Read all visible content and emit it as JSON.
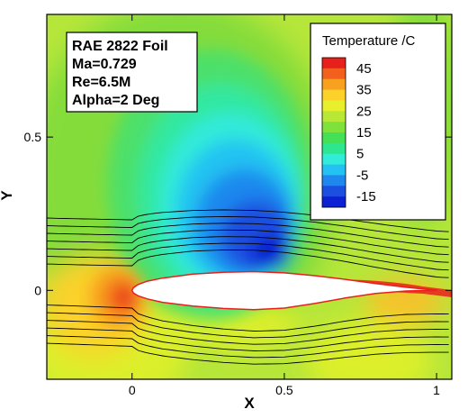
{
  "chart_data": {
    "type": "heatmap",
    "xlabel": "X",
    "ylabel": "Y",
    "xlim": [
      -0.28,
      1.05
    ],
    "ylim": [
      -0.29,
      0.9
    ],
    "x_ticks": [
      {
        "value": 0,
        "label": "0"
      },
      {
        "value": 0.5,
        "label": "0.5"
      },
      {
        "value": 1,
        "label": "1"
      }
    ],
    "y_ticks": [
      {
        "value": 0,
        "label": "0"
      },
      {
        "value": 0.5,
        "label": "0.5"
      }
    ],
    "info_box": {
      "lines": [
        "RAE 2822 Foil",
        "Ma=0.729",
        "Re=6.5M",
        "Alpha=2 Deg"
      ]
    },
    "legend": {
      "title": "Temperature /C",
      "levels": [
        50,
        45,
        40,
        35,
        30,
        25,
        20,
        15,
        10,
        5,
        0,
        -5,
        -10,
        -15,
        -20
      ],
      "labels": [
        "45",
        "35",
        "25",
        "15",
        "5",
        "-5",
        "-15"
      ],
      "colors": [
        "#e8201c",
        "#f2601e",
        "#f7a11f",
        "#fbd12a",
        "#e8ef2c",
        "#b8e835",
        "#7fe23c",
        "#44e055",
        "#2ce690",
        "#30ecd8",
        "#24c2f2",
        "#1e88ee",
        "#1a4fe0",
        "#0c22d2"
      ],
      "placement": "top-right"
    },
    "airfoil": {
      "name": "RAE 2822",
      "chord_from": 0,
      "chord_to": 1,
      "upper": [
        [
          0,
          0
        ],
        [
          0.005,
          0.009
        ],
        [
          0.02,
          0.019
        ],
        [
          0.05,
          0.03
        ],
        [
          0.1,
          0.04
        ],
        [
          0.2,
          0.053
        ],
        [
          0.3,
          0.059
        ],
        [
          0.4,
          0.061
        ],
        [
          0.5,
          0.057
        ],
        [
          0.6,
          0.048
        ],
        [
          0.7,
          0.036
        ],
        [
          0.8,
          0.022
        ],
        [
          0.9,
          0.01
        ],
        [
          1,
          0
        ]
      ],
      "lower": [
        [
          0,
          0
        ],
        [
          0.005,
          -0.009
        ],
        [
          0.02,
          -0.018
        ],
        [
          0.05,
          -0.028
        ],
        [
          0.1,
          -0.039
        ],
        [
          0.2,
          -0.051
        ],
        [
          0.3,
          -0.059
        ],
        [
          0.4,
          -0.063
        ],
        [
          0.5,
          -0.058
        ],
        [
          0.6,
          -0.043
        ],
        [
          0.7,
          -0.025
        ],
        [
          0.8,
          -0.01
        ],
        [
          0.9,
          -0.002
        ],
        [
          1,
          0
        ]
      ]
    },
    "streamlines": {
      "count": 13,
      "offsets": [
        0.21,
        0.185,
        0.16,
        0.135,
        0.11,
        0.085,
        0.06,
        -0.06,
        -0.085,
        -0.11,
        -0.135,
        -0.16,
        -0.185
      ]
    },
    "colors": {
      "background_field": "#b6e63a",
      "axis": "#000000",
      "foil": "#ffffff",
      "streamline": "#000000"
    }
  }
}
